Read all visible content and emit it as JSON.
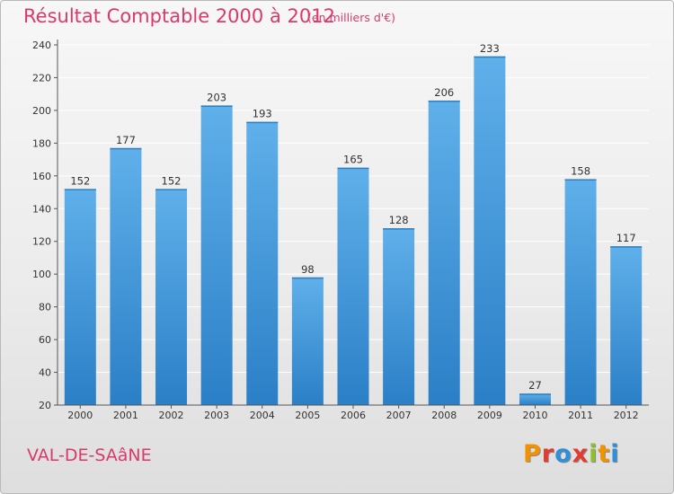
{
  "header": {
    "title": "Résultat Comptable 2000 à 2012",
    "subtitle": "(en milliers d'€)"
  },
  "footer": {
    "place": "VAL-DE-SAâNE",
    "brand": "Proxiti",
    "brand_colors": [
      "#f39200",
      "#e23c30",
      "#2f8fd8",
      "#e23c30",
      "#8dbf2e",
      "#f39200",
      "#2f8fd8"
    ]
  },
  "colors": {
    "bar_top": "#5fb0ea",
    "bar_bottom": "#2b7fc6",
    "axis": "#555555",
    "grid": "#ffffff",
    "text": "#333333",
    "accent": "#d93a6b"
  },
  "chart_data": {
    "type": "bar",
    "title": "Résultat Comptable 2000 à 2012",
    "subtitle": "(en milliers d'€)",
    "xlabel": "",
    "ylabel": "",
    "categories": [
      "2000",
      "2001",
      "2002",
      "2003",
      "2004",
      "2005",
      "2006",
      "2007",
      "2008",
      "2009",
      "2010",
      "2011",
      "2012"
    ],
    "values": [
      152,
      177,
      152,
      203,
      193,
      98,
      165,
      128,
      206,
      233,
      27,
      158,
      117
    ],
    "ylim": [
      20,
      240
    ],
    "yticks": [
      20,
      40,
      60,
      80,
      100,
      120,
      140,
      160,
      180,
      200,
      220,
      240
    ],
    "grid": true,
    "legend": "none"
  }
}
